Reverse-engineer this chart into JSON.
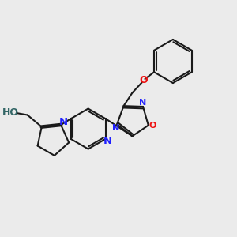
{
  "bg_color": "#ebebeb",
  "bond_color": "#1a1a1a",
  "N_color": "#2020ff",
  "O_color": "#ee1111",
  "OH_color": "#336666",
  "lw": 1.5,
  "fig_size": [
    3.0,
    3.0
  ],
  "dpi": 100,
  "xlim": [
    0,
    10
  ],
  "ylim": [
    0,
    10
  ]
}
